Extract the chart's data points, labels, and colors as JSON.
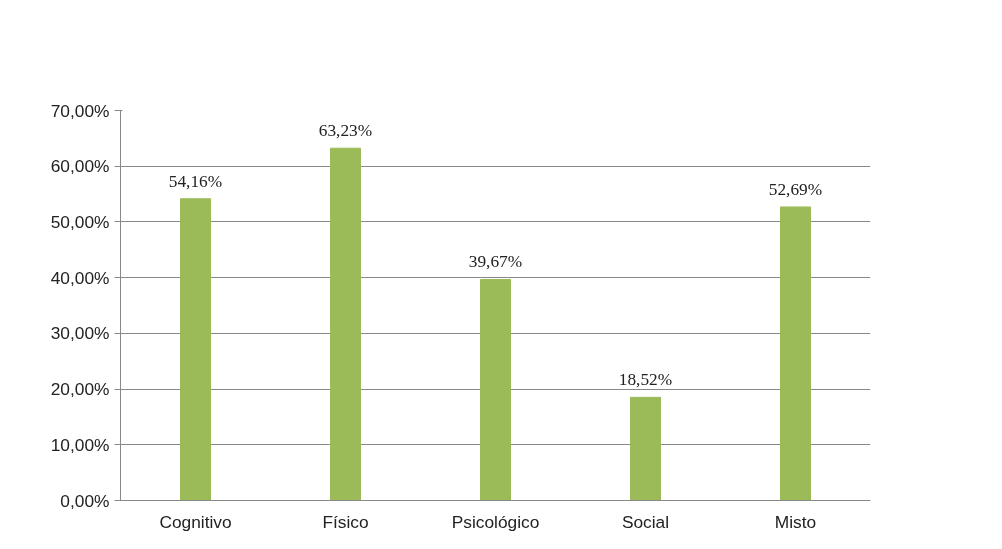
{
  "chart_data": {
    "type": "bar",
    "categories": [
      "Cognitivo",
      "Físico",
      "Psicológico",
      "Social",
      "Misto"
    ],
    "series": [
      {
        "color": "#9bbb59",
        "values": [
          54.16,
          63.23,
          39.67,
          18.52,
          52.69
        ],
        "value_labels": [
          "54,16%",
          "63,23%",
          "39,67%",
          "18,52%",
          "52,69%"
        ]
      }
    ],
    "ylim": [
      0,
      70
    ],
    "yticks": [
      {
        "value": 0,
        "label": "0,00%"
      },
      {
        "value": 10,
        "label": "10,00%"
      },
      {
        "value": 20,
        "label": "20,00%"
      },
      {
        "value": 30,
        "label": "30,00%"
      },
      {
        "value": 40,
        "label": "40,00%"
      },
      {
        "value": 50,
        "label": "50,00%"
      },
      {
        "value": 60,
        "label": "60,00%"
      },
      {
        "value": 70,
        "label": "70,00%"
      }
    ],
    "grid": "y"
  }
}
